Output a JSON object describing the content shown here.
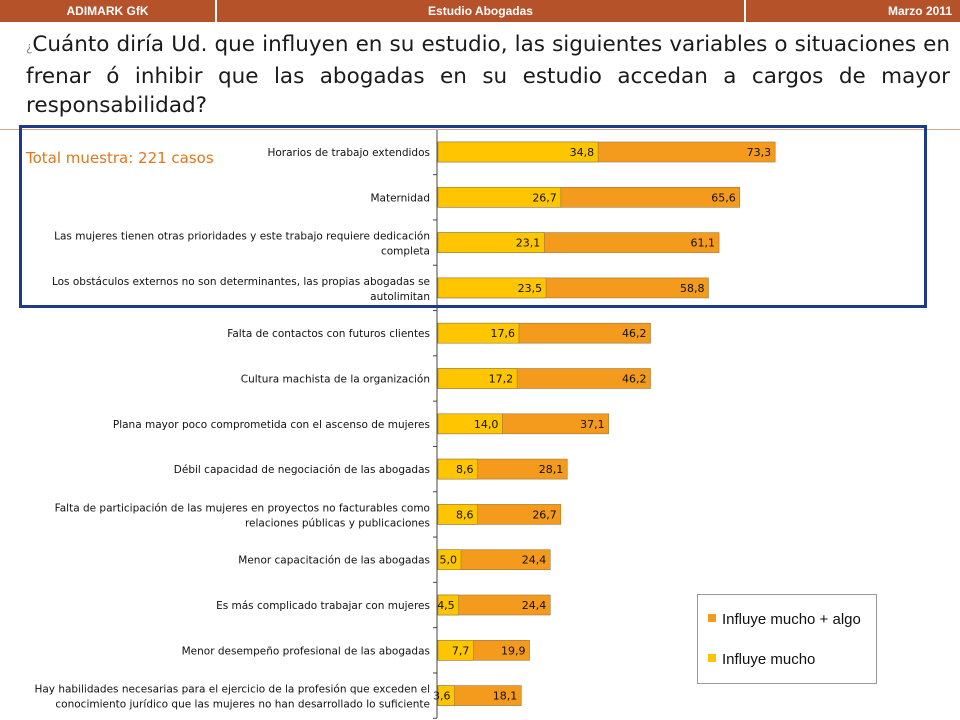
{
  "header": {
    "left": "ADIMARK GfK",
    "center": "Estudio Abogadas",
    "right": "Marzo 2011"
  },
  "question": {
    "mark": "¿",
    "text": "Cuánto diría Ud. que influyen en su estudio, las siguientes variables o situaciones  en frenar ó inhibir que las abogadas en su estudio accedan a cargos de mayor responsabilidad?"
  },
  "total_label": "Total muestra: 221 casos",
  "colors": {
    "header_bg": "#b5522a",
    "influye_mucho_algo": "#f49a1c",
    "influye_mucho": "#ffc600",
    "highlight_border": "#1f3a8a",
    "total_label": "#e0771b"
  },
  "chart_data": {
    "type": "bar",
    "orientation": "horizontal",
    "categories": [
      [
        "Horarios de trabajo extendidos"
      ],
      [
        "Maternidad"
      ],
      [
        "Las mujeres tienen otras prioridades y este trabajo requiere dedicación",
        "completa"
      ],
      [
        "Los obstáculos externos no son determinantes, las propias abogadas se",
        "autolimitan"
      ],
      [
        "Falta de contactos con futuros clientes"
      ],
      [
        "Cultura machista de la organización"
      ],
      [
        "Plana mayor poco comprometida con el ascenso de mujeres"
      ],
      [
        "Débil capacidad de negociación de las abogadas"
      ],
      [
        "Falta de participación de las mujeres en proyectos no facturables como",
        "relaciones públicas y publicaciones"
      ],
      [
        "Menor capacitación de las abogadas"
      ],
      [
        "Es más complicado trabajar con mujeres"
      ],
      [
        "Menor desempeño profesional de las abogadas"
      ],
      [
        "Hay habilidades necesarias para el ejercicio de la profesión que exceden el",
        "conocimiento jurídico que las mujeres no han desarrollado lo suficiente"
      ]
    ],
    "series": [
      {
        "name": "Influye mucho + algo",
        "color": "#f49a1c",
        "values": [
          73.3,
          65.6,
          61.1,
          58.8,
          46.2,
          46.2,
          37.1,
          28.1,
          26.7,
          24.4,
          24.4,
          19.9,
          18.1
        ],
        "labels": [
          "73,3",
          "65,6",
          "61,1",
          "58,8",
          "46,2",
          "46,2",
          "37,1",
          "28,1",
          "26,7",
          "24,4",
          "24,4",
          "19,9",
          "18,1"
        ]
      },
      {
        "name": "Influye mucho",
        "color": "#ffc600",
        "values": [
          34.8,
          26.7,
          23.1,
          23.5,
          17.6,
          17.2,
          14.0,
          8.6,
          8.6,
          5.0,
          4.5,
          7.7,
          3.6
        ],
        "labels": [
          "34,8",
          "26,7",
          "23,1",
          "23,5",
          "17,6",
          "17,2",
          "14,0",
          "8,6",
          "8,6",
          "5,0",
          "4,5",
          "7,7",
          "3,6"
        ]
      }
    ],
    "legend_position": "bottom-right",
    "xlim": [
      0,
      100
    ],
    "grid": false
  }
}
